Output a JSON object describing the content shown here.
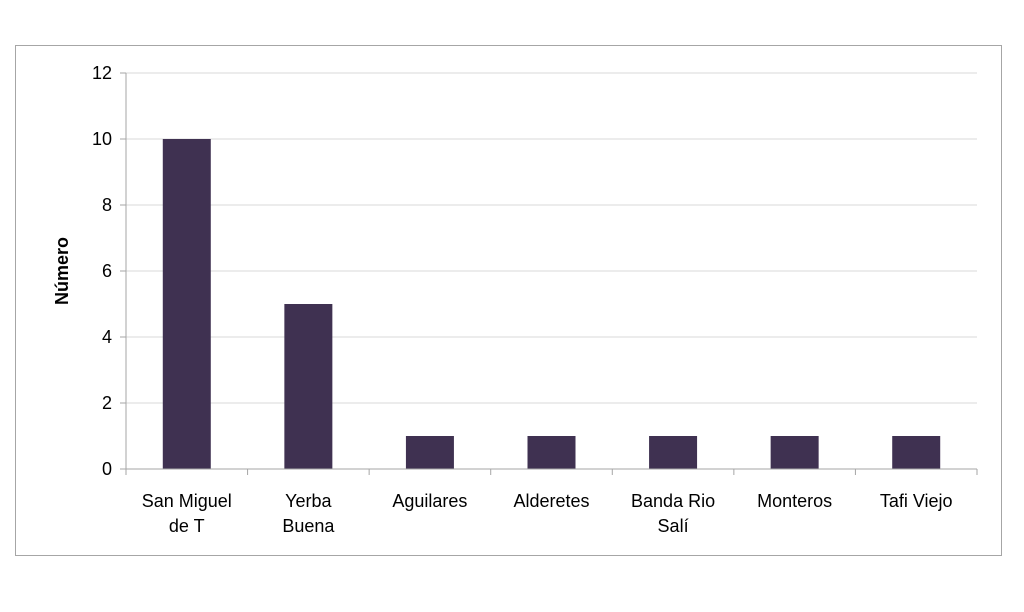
{
  "chart_data": {
    "type": "bar",
    "categories": [
      [
        "San Miguel",
        "de T"
      ],
      [
        "Yerba",
        "Buena"
      ],
      [
        "Aguilares"
      ],
      [
        "Alderetes"
      ],
      [
        "Banda Rio",
        "Salí"
      ],
      [
        "Monteros"
      ],
      [
        "Tafi Viejo"
      ]
    ],
    "values": [
      10,
      5,
      1,
      1,
      1,
      1,
      1
    ],
    "title": "",
    "xlabel": "",
    "ylabel": "Número",
    "ylim": [
      0,
      12
    ],
    "yticks": [
      0,
      2,
      4,
      6,
      8,
      10,
      12
    ],
    "grid": true,
    "legend": "none",
    "bar_color": "#3f3151",
    "grid_color": "#d9d9d9",
    "axis_color": "#a6a6a6"
  }
}
